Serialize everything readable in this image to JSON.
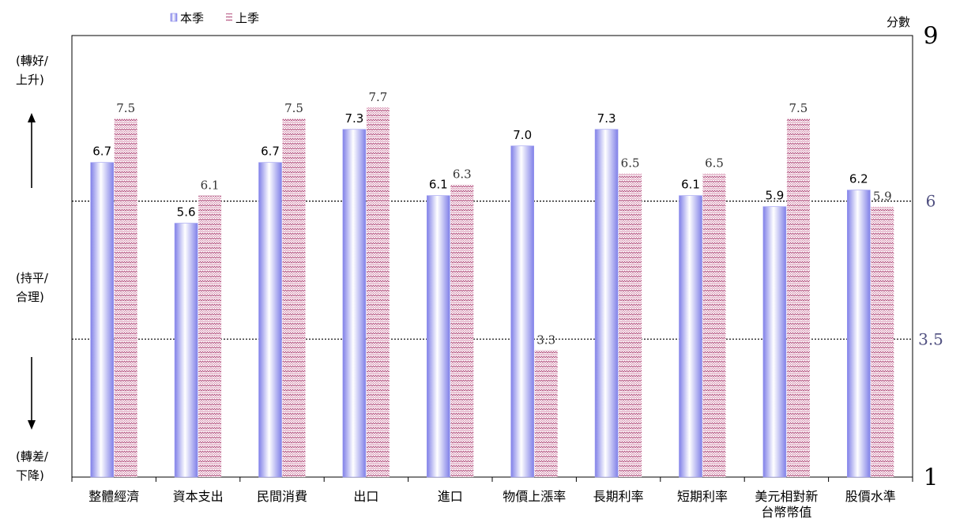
{
  "chart_data": {
    "type": "bar",
    "legend": {
      "position": "top-left",
      "entries": [
        "本季",
        "上季"
      ]
    },
    "y_title": "分數",
    "ylim": [
      1,
      9
    ],
    "y_ticks": [
      "9",
      "6",
      "3.5",
      "1"
    ],
    "y_tick_values": [
      9,
      6,
      3.5,
      1
    ],
    "reference_lines": [
      6,
      3.5
    ],
    "left_labels": {
      "up": [
        "(轉好/",
        "上升)"
      ],
      "mid": [
        "(持平/",
        "合理)"
      ],
      "down": [
        "(轉差/",
        "下降)"
      ]
    },
    "categories": [
      [
        "整體經濟"
      ],
      [
        "資本支出"
      ],
      [
        "民間消費"
      ],
      [
        "出口"
      ],
      [
        "進口"
      ],
      [
        "物價上漲率"
      ],
      [
        "長期利率"
      ],
      [
        "短期利率"
      ],
      [
        "美元相對新",
        "台幣幣值"
      ],
      [
        "股價水準"
      ]
    ],
    "series": [
      {
        "name": "本季",
        "values": [
          6.7,
          5.6,
          6.7,
          7.3,
          6.1,
          7.0,
          7.3,
          6.1,
          5.9,
          6.2
        ],
        "labels": [
          "6.7",
          "5.6",
          "6.7",
          "7.3",
          "6.1",
          "7.0",
          "7.3",
          "6.1",
          "5.9",
          "6.2"
        ]
      },
      {
        "name": "上季",
        "values": [
          7.5,
          6.1,
          7.5,
          7.7,
          6.3,
          3.3,
          6.5,
          6.5,
          7.5,
          5.9
        ],
        "labels": [
          "7.5",
          "6.1",
          "7.5",
          "7.7",
          "6.3",
          "3.3",
          "6.5",
          "6.5",
          "7.5",
          "5.9"
        ]
      }
    ],
    "colors": {
      "current": "#8c8cf0",
      "previous": "#c06090",
      "tick_axis": "#505080"
    }
  }
}
